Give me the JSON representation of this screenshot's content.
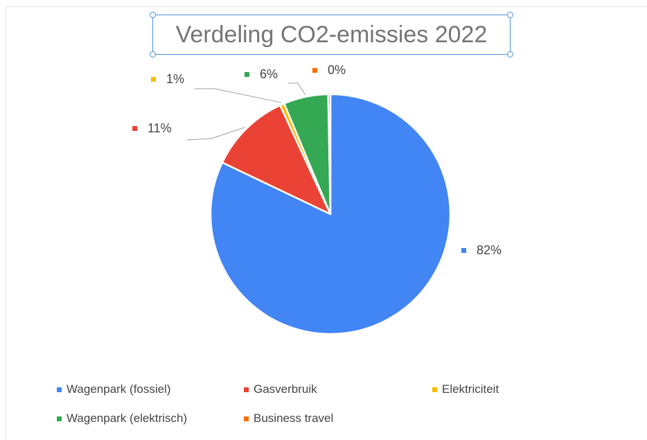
{
  "chart_data": {
    "type": "pie",
    "title": "Verdeling CO2-emissies 2022",
    "legend_position": "bottom",
    "slices": [
      {
        "name": "Wagenpark (fossiel)",
        "value": 82,
        "label": "82%",
        "color": "#4285f4"
      },
      {
        "name": "Gasverbruik",
        "value": 11,
        "label": "11%",
        "color": "#ea4335"
      },
      {
        "name": "Elektriciteit",
        "value": 0.6,
        "label": "1%",
        "color": "#fbbc04"
      },
      {
        "name": "Wagenpark (elektrisch)",
        "value": 6,
        "label": "6%",
        "color": "#34a853"
      },
      {
        "name": "Business travel",
        "value": 0.3,
        "label": "0%",
        "color": "#ff6d01"
      }
    ]
  }
}
